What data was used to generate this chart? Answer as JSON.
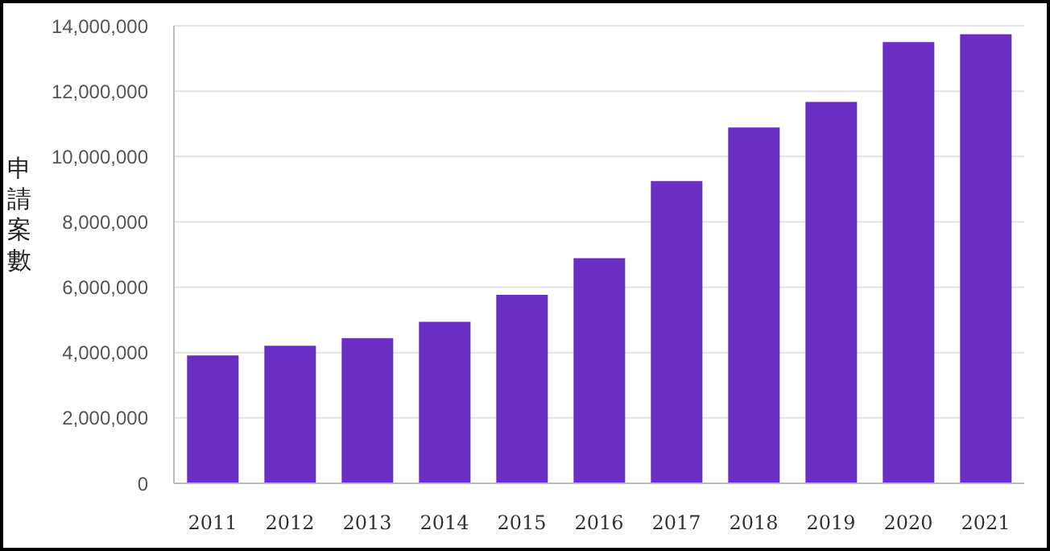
{
  "chart_data": {
    "type": "bar",
    "ylabel": "申請案數",
    "categories": [
      "2011",
      "2012",
      "2013",
      "2014",
      "2015",
      "2016",
      "2017",
      "2018",
      "2019",
      "2020",
      "2021"
    ],
    "values": [
      3910000,
      4210000,
      4440000,
      4940000,
      5770000,
      6890000,
      9250000,
      10890000,
      11670000,
      13500000,
      13740000
    ],
    "color": "#6a2ec2",
    "ylim": [
      0,
      14000000
    ],
    "yticks": [
      0,
      {
        "value": 2000000,
        "label": "2,000,000"
      },
      {
        "value": 4000000,
        "label": "4,000,000"
      },
      {
        "value": 6000000,
        "label": "6,000,000"
      },
      {
        "value": 8000000,
        "label": "8,000,000"
      },
      {
        "value": 10000000,
        "label": "10,000,000"
      },
      {
        "value": 12000000,
        "label": "12,000,000"
      },
      {
        "value": 14000000,
        "label": "14,000,000"
      }
    ],
    "grid": "y",
    "legend": false
  }
}
